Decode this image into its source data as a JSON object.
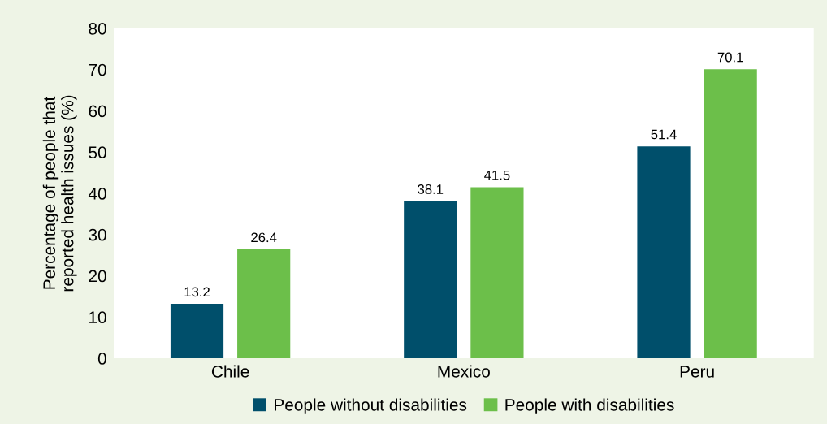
{
  "chart_data": {
    "type": "bar",
    "ylabel": "Percentage of people that\nreported health issues (%)",
    "categories": [
      "Chile",
      "Mexico",
      "Peru"
    ],
    "series": [
      {
        "name": "People without disabilities",
        "color": "#004f6b",
        "values": [
          13.2,
          38.1,
          51.4
        ]
      },
      {
        "name": "People with disabilities",
        "color": "#6cbf4a",
        "values": [
          26.4,
          41.5,
          70.1
        ]
      }
    ],
    "ylim": [
      0,
      80
    ],
    "yticks": [
      0,
      10,
      20,
      30,
      40,
      50,
      60,
      70,
      80
    ],
    "data_labels": true,
    "grid": false,
    "legend": "bottom"
  }
}
